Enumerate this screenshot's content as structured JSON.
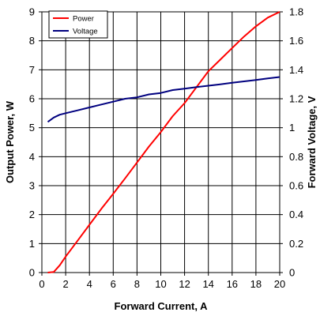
{
  "chart_data": {
    "type": "line",
    "xlabel": "Forward Current, A",
    "ylabel": "Output Power, W",
    "y2label": "Forward Voltage, V",
    "xlim": [
      0,
      20
    ],
    "ylim": [
      0,
      9
    ],
    "y2lim": [
      0,
      1.8
    ],
    "xticks": [
      0,
      2,
      4,
      6,
      8,
      10,
      12,
      14,
      16,
      18,
      20
    ],
    "yticks": [
      0,
      1,
      2,
      3,
      4,
      5,
      6,
      7,
      8,
      9
    ],
    "y2ticks": [
      "0",
      "0.2",
      "0.4",
      "0.6",
      "0.8",
      "1",
      "1.2",
      "1.4",
      "1.6",
      "1.8"
    ],
    "grid": true,
    "legend_position": "top-left",
    "series": [
      {
        "name": "Power",
        "color": "#ff0000",
        "axis": "left",
        "x": [
          0.5,
          1.0,
          1.5,
          2.0,
          3.0,
          4.0,
          5.0,
          6.0,
          7.0,
          8.0,
          9.0,
          10.0,
          11.0,
          12.0,
          13.0,
          14.0,
          15.0,
          16.0,
          17.0,
          18.0,
          19.0,
          20.0
        ],
        "y": [
          0.0,
          0.02,
          0.25,
          0.55,
          1.1,
          1.65,
          2.2,
          2.72,
          3.25,
          3.8,
          4.35,
          4.85,
          5.4,
          5.85,
          6.4,
          6.95,
          7.35,
          7.75,
          8.15,
          8.5,
          8.8,
          9.0
        ]
      },
      {
        "name": "Voltage",
        "color": "#00007f",
        "axis": "right",
        "x": [
          0.5,
          1.0,
          1.5,
          2.0,
          3.0,
          4.0,
          5.0,
          6.0,
          7.0,
          8.0,
          9.0,
          10.0,
          11.0,
          12.0,
          13.0,
          14.0,
          15.0,
          16.0,
          17.0,
          18.0,
          19.0,
          20.0
        ],
        "y": [
          1.04,
          1.07,
          1.09,
          1.1,
          1.12,
          1.14,
          1.16,
          1.18,
          1.2,
          1.21,
          1.23,
          1.24,
          1.26,
          1.27,
          1.28,
          1.29,
          1.3,
          1.31,
          1.32,
          1.33,
          1.34,
          1.35
        ]
      }
    ]
  }
}
